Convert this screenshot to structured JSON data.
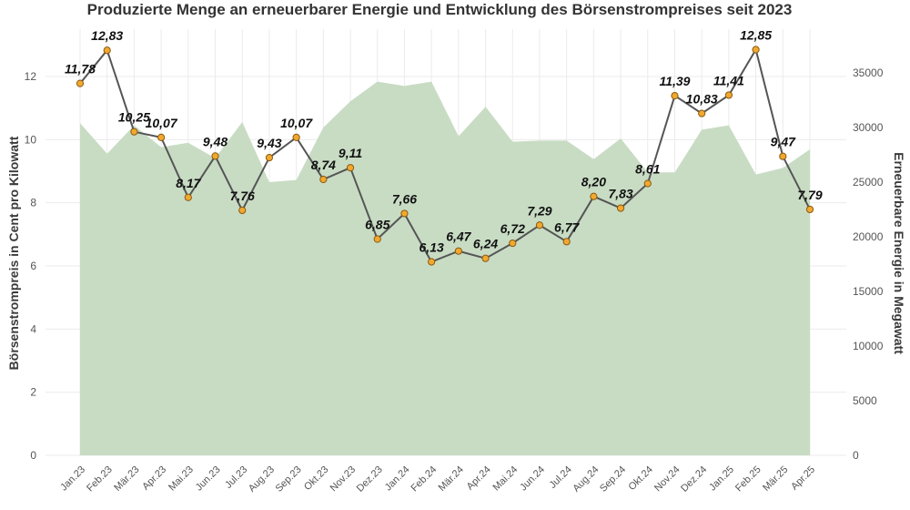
{
  "chart_data": {
    "type": "line",
    "title": "Produzierte Menge an erneuerbarer Energie und Entwicklung des Börsenstrompreises seit 2023",
    "ylabel": "Börsenstrompreis in Cent pro Kilowatt",
    "y2label": "Erneuerbare Energie in Megawatt",
    "categories": [
      "Jan.23",
      "Feb.23",
      "Mär.23",
      "Apr.23",
      "Mai.23",
      "Jun.23",
      "Jul.23",
      "Aug.23",
      "Sep.23",
      "Okt.23",
      "Nov.23",
      "Dez.23",
      "Jan.24",
      "Feb.24",
      "Mär.24",
      "Apr.24",
      "Mai.24",
      "Jun.24",
      "Jul.24",
      "Aug.24",
      "Sep.24",
      "Okt.24",
      "Nov.24",
      "Dez.24",
      "Jan.25",
      "Feb.25",
      "Mär.25",
      "Apr.25"
    ],
    "ylim": [
      0,
      13.5
    ],
    "yticks": [
      0,
      2,
      4,
      6,
      8,
      10,
      12
    ],
    "y2lim": [
      0,
      39000
    ],
    "y2ticks": [
      0,
      5000,
      10000,
      15000,
      20000,
      25000,
      30000,
      35000
    ],
    "grid": true,
    "series": [
      {
        "type": "line",
        "axis": "left",
        "values": [
          11.78,
          12.83,
          10.25,
          10.07,
          8.17,
          9.48,
          7.76,
          9.43,
          10.07,
          8.74,
          9.11,
          6.85,
          7.66,
          6.13,
          6.47,
          6.24,
          6.72,
          7.29,
          6.77,
          8.2,
          7.83,
          8.61,
          11.39,
          10.83,
          11.41,
          12.85,
          9.47,
          7.79
        ],
        "labels": [
          "11,78",
          "12,83",
          "10,25",
          "10,07",
          "8,17",
          "9,48",
          "7,76",
          "9,43",
          "10,07",
          "8,74",
          "9,11",
          "6,85",
          "7,66",
          "6,13",
          "6,47",
          "6,24",
          "6,72",
          "7,29",
          "6,77",
          "8,20",
          "7,83",
          "8,61",
          "11,39",
          "10,83",
          "11,41",
          "12,85",
          "9,47",
          "7,79"
        ],
        "color": "#555555",
        "marker_color": "#f0a830",
        "marker_edge": "#8a5a10"
      },
      {
        "type": "area",
        "axis": "right",
        "values": [
          30400,
          27600,
          30200,
          28200,
          28600,
          27200,
          30500,
          25000,
          25200,
          30000,
          32400,
          34200,
          33800,
          34200,
          29200,
          31900,
          28700,
          28800,
          28800,
          27100,
          29000,
          25900,
          25900,
          29800,
          30200,
          25700,
          26300,
          28000
        ],
        "color": "#c8dcc4"
      }
    ]
  }
}
